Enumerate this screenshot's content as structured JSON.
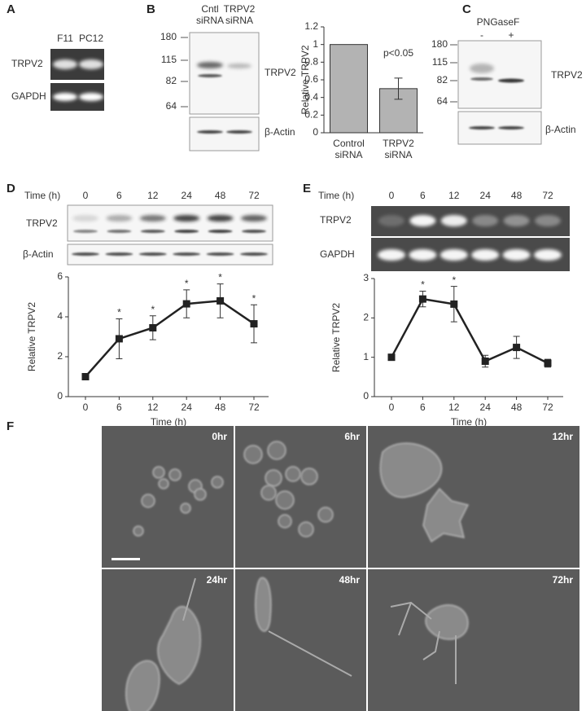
{
  "panel_a": {
    "label": "A",
    "lanes": [
      "F11",
      "PC12"
    ],
    "rows": [
      "TRPV2",
      "GAPDH"
    ]
  },
  "panel_b": {
    "label": "B",
    "lanes": [
      "Cntl siRNA",
      "TRPV2 siRNA"
    ],
    "markers": [
      180,
      115,
      82,
      64
    ],
    "rows": [
      "TRPV2",
      "β-Actin"
    ]
  },
  "panel_c": {
    "label": "C",
    "treatment": "PNGaseF",
    "lanes": [
      "-",
      "+"
    ],
    "markers": [
      180,
      115,
      82,
      64
    ],
    "rows": [
      "TRPV2",
      "β-Actin"
    ]
  },
  "panel_d": {
    "label": "D",
    "time_label": "Time (h)",
    "times": [
      0,
      6,
      12,
      24,
      48,
      72
    ],
    "rows": [
      "TRPV2",
      "β-Actin"
    ]
  },
  "panel_e": {
    "label": "E",
    "time_label": "Time (h)",
    "times": [
      0,
      6,
      12,
      24,
      48,
      72
    ],
    "rows": [
      "TRPV2",
      "GAPDH"
    ]
  },
  "panel_f": {
    "label": "F",
    "timepoints": [
      "0hr",
      "6hr",
      "12hr",
      "24hr",
      "48hr",
      "72hr"
    ]
  },
  "chart_data": [
    {
      "type": "bar",
      "ylabel": "Relative TRPV2",
      "categories": [
        "Control siRNA",
        "TRPV2 siRNA"
      ],
      "values": [
        1,
        0.5
      ],
      "errors": [
        null,
        0.12
      ],
      "color": "#b3b3b3",
      "annotation": "p<0.05",
      "ylim": [
        0,
        1.2
      ],
      "yticks": [
        0,
        0.2,
        0.4,
        0.6,
        0.8,
        1,
        1.2
      ]
    },
    {
      "type": "line",
      "xlabel": "Time (h)",
      "ylabel": "Relative TRPV2",
      "categories": [
        0,
        6,
        12,
        24,
        48,
        72
      ],
      "values": [
        1,
        2.9,
        3.45,
        4.65,
        4.8,
        3.65
      ],
      "errors": [
        null,
        1.0,
        0.6,
        0.7,
        0.85,
        0.95
      ],
      "significance": [
        null,
        "*",
        "*",
        "*",
        "*",
        "*"
      ],
      "color": "#222222",
      "ylim": [
        0,
        6
      ],
      "yticks": [
        0,
        2,
        4,
        6
      ]
    },
    {
      "type": "line",
      "xlabel": "Time (h)",
      "ylabel": "Relative TRPV2",
      "categories": [
        0,
        6,
        12,
        24,
        48,
        72
      ],
      "values": [
        1,
        2.48,
        2.35,
        0.9,
        1.25,
        0.85
      ],
      "errors": [
        null,
        0.2,
        0.45,
        0.15,
        0.28,
        0.1
      ],
      "significance": [
        null,
        "*",
        "*",
        null,
        null,
        null
      ],
      "color": "#222222",
      "ylim": [
        0,
        3
      ],
      "yticks": [
        0,
        1,
        2,
        3
      ]
    }
  ]
}
